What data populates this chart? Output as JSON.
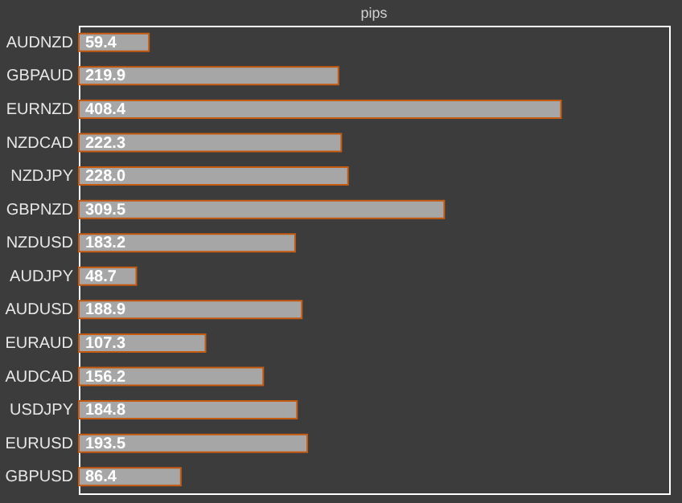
{
  "chart_data": {
    "type": "bar",
    "orientation": "horizontal",
    "title": "pips",
    "categories": [
      "AUDNZD",
      "GBPAUD",
      "EURNZD",
      "NZDCAD",
      "NZDJPY",
      "GBPNZD",
      "NZDUSD",
      "AUDJPY",
      "AUDUSD",
      "EURAUD",
      "AUDCAD",
      "USDJPY",
      "EURUSD",
      "GBPUSD"
    ],
    "values": [
      59.4,
      219.9,
      408.4,
      222.3,
      228.0,
      309.5,
      183.2,
      48.7,
      188.9,
      107.3,
      156.2,
      184.8,
      193.5,
      86.4
    ],
    "value_labels": [
      "59.4",
      "219.9",
      "408.4",
      "222.3",
      "228.0",
      "309.5",
      "183.2",
      "48.7",
      "188.9",
      "107.3",
      "156.2",
      "184.8",
      "193.5",
      "86.4"
    ],
    "color": "#a6a6a6",
    "xlim": [
      0,
      500
    ],
    "grid": false
  }
}
